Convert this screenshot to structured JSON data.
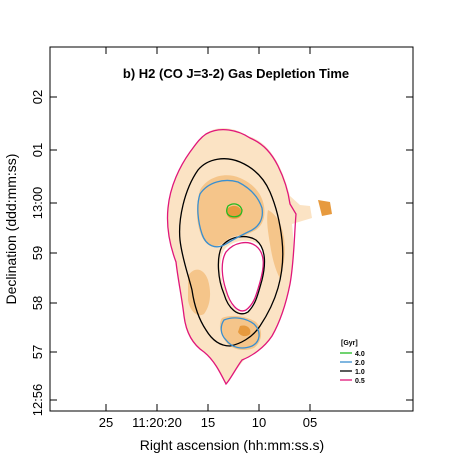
{
  "chart_data": {
    "type": "contour map",
    "title": "b) H2 (CO J=3-2) Gas Depletion Time",
    "xlabel": "Right ascension (hh:mm:ss.s)",
    "ylabel": "Declination (ddd:mm:ss)",
    "x_tick_labels": [
      "25",
      "11:20:20",
      "15",
      "10",
      "05"
    ],
    "y_tick_labels": [
      "12:56",
      "57",
      "58",
      "59",
      "13:00",
      "01",
      "02"
    ],
    "legend": {
      "title": "[Gyr]",
      "placement": "bottom-right",
      "entries": [
        {
          "label": "4.0",
          "color": "#22bb22"
        },
        {
          "label": "2.0",
          "color": "#3a8fd0"
        },
        {
          "label": "1.0",
          "color": "#000000"
        },
        {
          "label": "0.5",
          "color": "#e0177a"
        }
      ]
    },
    "colors": {
      "map_light": "#fbe3c4",
      "map_mid": "#f5c58a",
      "map_dark": "#e79a3e"
    }
  }
}
